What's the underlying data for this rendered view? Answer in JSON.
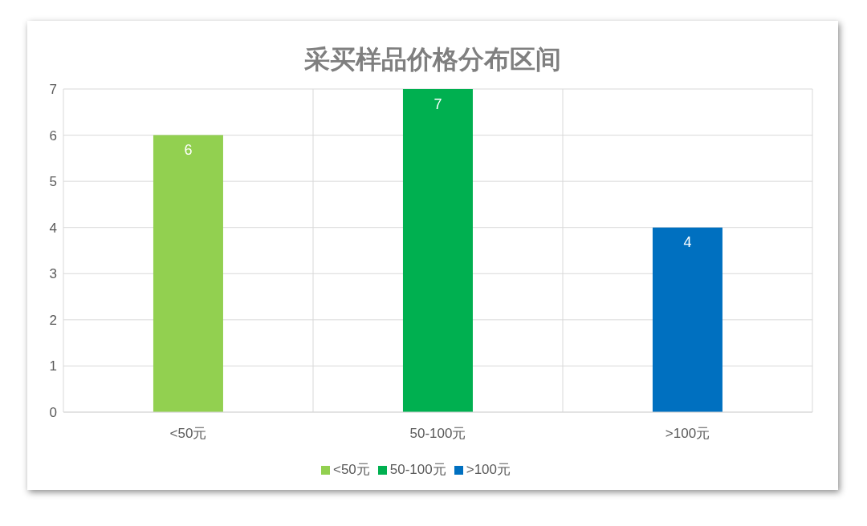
{
  "chart_data": {
    "type": "bar",
    "title": "采买样品价格分布区间",
    "categories": [
      "<50元",
      "50-100元",
      ">100元"
    ],
    "series": [
      {
        "name": "<50元",
        "color": "#92d050",
        "values": [
          6,
          null,
          null
        ]
      },
      {
        "name": "50-100元",
        "color": "#00b050",
        "values": [
          null,
          7,
          null
        ]
      },
      {
        "name": ">100元",
        "color": "#0070c0",
        "values": [
          null,
          null,
          4
        ]
      }
    ],
    "stacked": true,
    "ylim": [
      0,
      7
    ],
    "yticks": [
      0,
      1,
      2,
      3,
      4,
      5,
      6,
      7
    ],
    "grid": true,
    "data_labels": true,
    "legend": "bottom"
  }
}
